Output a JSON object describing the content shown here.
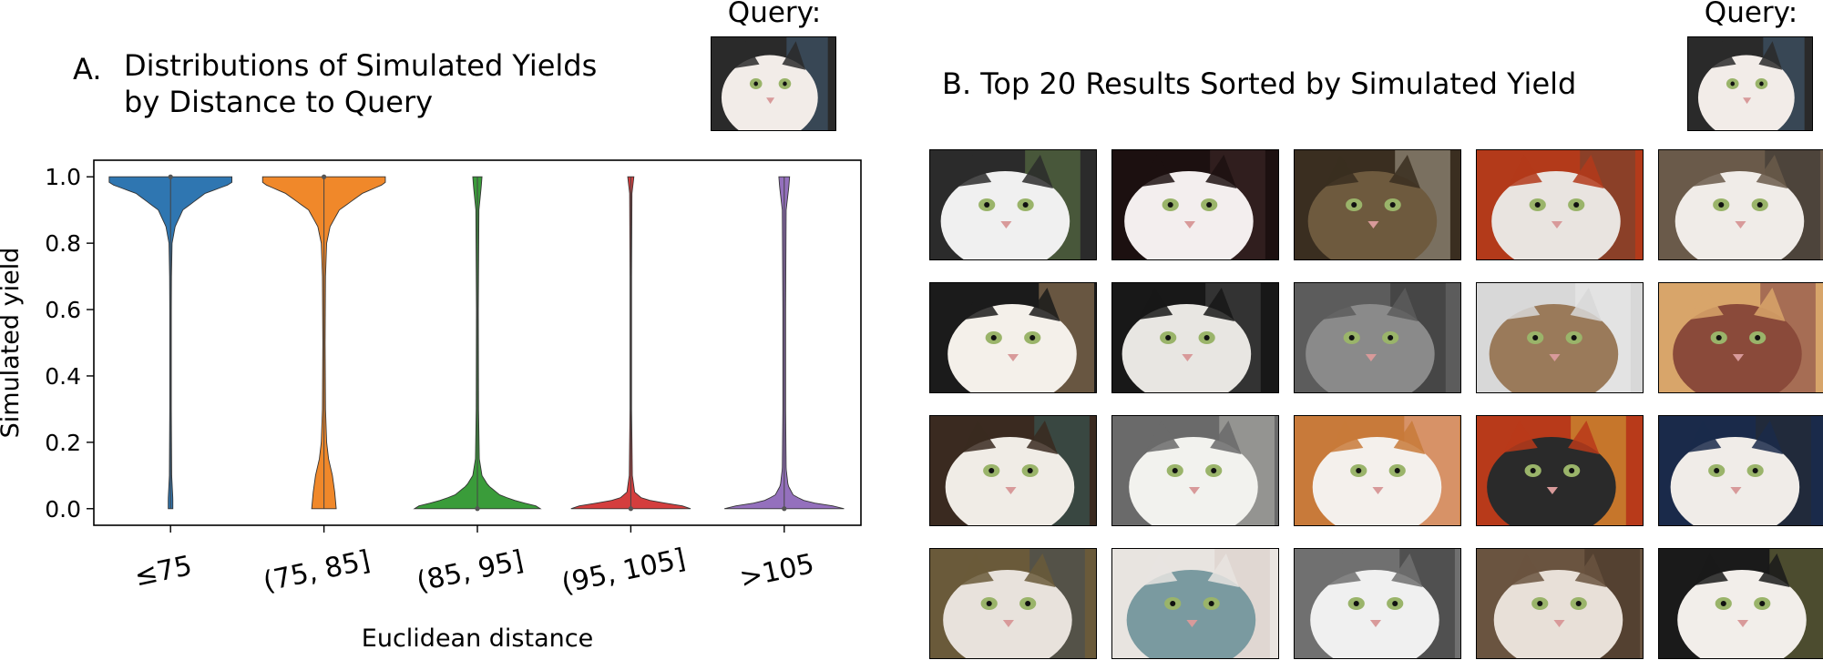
{
  "panel_a": {
    "letter": "A.",
    "title_line1": "Distributions of Simulated Yields",
    "title_line2": "by Distance to Query",
    "query_label": "Query:"
  },
  "panel_b": {
    "title": "B. Top 20 Results Sorted by Simulated Yield",
    "query_label": "Query:",
    "grid_rows": 4,
    "grid_cols": 5,
    "thumbnails": [
      {
        "name": "result-1",
        "palette": [
          "#2b2b2b",
          "#f0f0f0",
          "#6c8f4e"
        ]
      },
      {
        "name": "result-2",
        "palette": [
          "#1c1010",
          "#f3eeee",
          "#4a3030"
        ]
      },
      {
        "name": "result-3",
        "palette": [
          "#3a2e20",
          "#6e5a3e",
          "#c9c0b0"
        ]
      },
      {
        "name": "result-4",
        "palette": [
          "#b33a1a",
          "#e9e4e0",
          "#5a4a3a"
        ]
      },
      {
        "name": "result-5",
        "palette": [
          "#6a5a4a",
          "#f0ece8",
          "#2a2a2a"
        ]
      },
      {
        "name": "result-6",
        "palette": [
          "#1b1b1b",
          "#f4f0ea",
          "#c8a070"
        ]
      },
      {
        "name": "result-7",
        "palette": [
          "#181818",
          "#e8e6e2",
          "#555555"
        ]
      },
      {
        "name": "result-8",
        "palette": [
          "#5c5c5c",
          "#8a8a8a",
          "#2c2c2c"
        ]
      },
      {
        "name": "result-9",
        "palette": [
          "#d8d8d8",
          "#9a7a5a",
          "#f2f2f2"
        ]
      },
      {
        "name": "result-10",
        "palette": [
          "#d8a56a",
          "#8a4a3a",
          "#6a2a3a"
        ]
      },
      {
        "name": "result-11",
        "palette": [
          "#3a2a20",
          "#f0ece6",
          "#3a6a6a"
        ]
      },
      {
        "name": "result-12",
        "palette": [
          "#6a6a6a",
          "#f2f2ee",
          "#c8c8c0"
        ]
      },
      {
        "name": "result-13",
        "palette": [
          "#c87a3a",
          "#f4f0ec",
          "#e8b0a0"
        ]
      },
      {
        "name": "result-14",
        "palette": [
          "#b83a1a",
          "#2a2a2a",
          "#d8c040"
        ]
      },
      {
        "name": "result-15",
        "palette": [
          "#1a2a4a",
          "#f0ece8",
          "#2a2a2a"
        ]
      },
      {
        "name": "result-16",
        "palette": [
          "#6a5a3a",
          "#e8e2dc",
          "#3a4a5a"
        ]
      },
      {
        "name": "result-17",
        "palette": [
          "#e8e4e0",
          "#7a9aa0",
          "#d8c8c0"
        ]
      },
      {
        "name": "result-18",
        "palette": [
          "#707070",
          "#f0f0f0",
          "#2a2a2a"
        ]
      },
      {
        "name": "result-19",
        "palette": [
          "#6a5440",
          "#e8e0d8",
          "#3a2a20"
        ]
      },
      {
        "name": "result-20",
        "palette": [
          "#1a1a1a",
          "#f2eeea",
          "#8a8a4a"
        ]
      }
    ]
  },
  "query_image": {
    "name": "query-cat",
    "palette": [
      "#2a2a2a",
      "#f2ece8",
      "#4a6a8a"
    ]
  },
  "chart_data": {
    "type": "violin",
    "xlabel": "Euclidean distance",
    "ylabel": "Simulated yield",
    "categories": [
      "≤75",
      "(75, 85]",
      "(85, 95]",
      "(95, 105]",
      ">105"
    ],
    "colors": [
      "#2f76b1",
      "#f0882a",
      "#3a9c3a",
      "#d43e3e",
      "#9470bd"
    ],
    "ylim": [
      -0.05,
      1.05
    ],
    "yticks": [
      0.0,
      0.2,
      0.4,
      0.6,
      0.8,
      1.0
    ],
    "ytick_labels": [
      "0.0",
      "0.2",
      "0.4",
      "0.6",
      "0.8",
      "1.0"
    ],
    "grid": false,
    "series": [
      {
        "category": "≤75",
        "median": 1.0,
        "profile": [
          [
            0.0,
            0.03
          ],
          [
            0.03,
            0.03
          ],
          [
            0.1,
            0.015
          ],
          [
            0.3,
            0.01
          ],
          [
            0.6,
            0.01
          ],
          [
            0.7,
            0.012
          ],
          [
            0.8,
            0.02
          ],
          [
            0.85,
            0.06
          ],
          [
            0.9,
            0.16
          ],
          [
            0.95,
            0.45
          ],
          [
            0.98,
            0.8
          ],
          [
            1.0,
            0.8
          ]
        ]
      },
      {
        "category": "(75, 85]",
        "median": 1.0,
        "profile": [
          [
            0.0,
            0.16
          ],
          [
            0.05,
            0.14
          ],
          [
            0.1,
            0.11
          ],
          [
            0.15,
            0.06
          ],
          [
            0.2,
            0.035
          ],
          [
            0.3,
            0.02
          ],
          [
            0.5,
            0.015
          ],
          [
            0.7,
            0.02
          ],
          [
            0.8,
            0.035
          ],
          [
            0.85,
            0.08
          ],
          [
            0.9,
            0.2
          ],
          [
            0.95,
            0.5
          ],
          [
            0.98,
            0.8
          ],
          [
            1.0,
            0.8
          ]
        ]
      },
      {
        "category": "(85, 95]",
        "median": 0.0,
        "profile": [
          [
            0.0,
            0.82
          ],
          [
            0.01,
            0.75
          ],
          [
            0.02,
            0.55
          ],
          [
            0.04,
            0.3
          ],
          [
            0.07,
            0.14
          ],
          [
            0.1,
            0.06
          ],
          [
            0.15,
            0.025
          ],
          [
            0.3,
            0.015
          ],
          [
            0.6,
            0.012
          ],
          [
            0.9,
            0.02
          ],
          [
            0.97,
            0.05
          ],
          [
            1.0,
            0.06
          ]
        ]
      },
      {
        "category": "(95, 105]",
        "median": 0.0,
        "profile": [
          [
            0.0,
            0.78
          ],
          [
            0.01,
            0.65
          ],
          [
            0.02,
            0.35
          ],
          [
            0.03,
            0.15
          ],
          [
            0.05,
            0.05
          ],
          [
            0.1,
            0.02
          ],
          [
            0.3,
            0.01
          ],
          [
            0.7,
            0.01
          ],
          [
            0.95,
            0.015
          ],
          [
            1.0,
            0.04
          ]
        ]
      },
      {
        "category": ">105",
        "median": 0.0,
        "profile": [
          [
            0.0,
            0.78
          ],
          [
            0.01,
            0.6
          ],
          [
            0.02,
            0.3
          ],
          [
            0.04,
            0.12
          ],
          [
            0.07,
            0.05
          ],
          [
            0.12,
            0.025
          ],
          [
            0.3,
            0.018
          ],
          [
            0.6,
            0.018
          ],
          [
            0.9,
            0.025
          ],
          [
            0.97,
            0.06
          ],
          [
            1.0,
            0.07
          ]
        ]
      }
    ]
  }
}
